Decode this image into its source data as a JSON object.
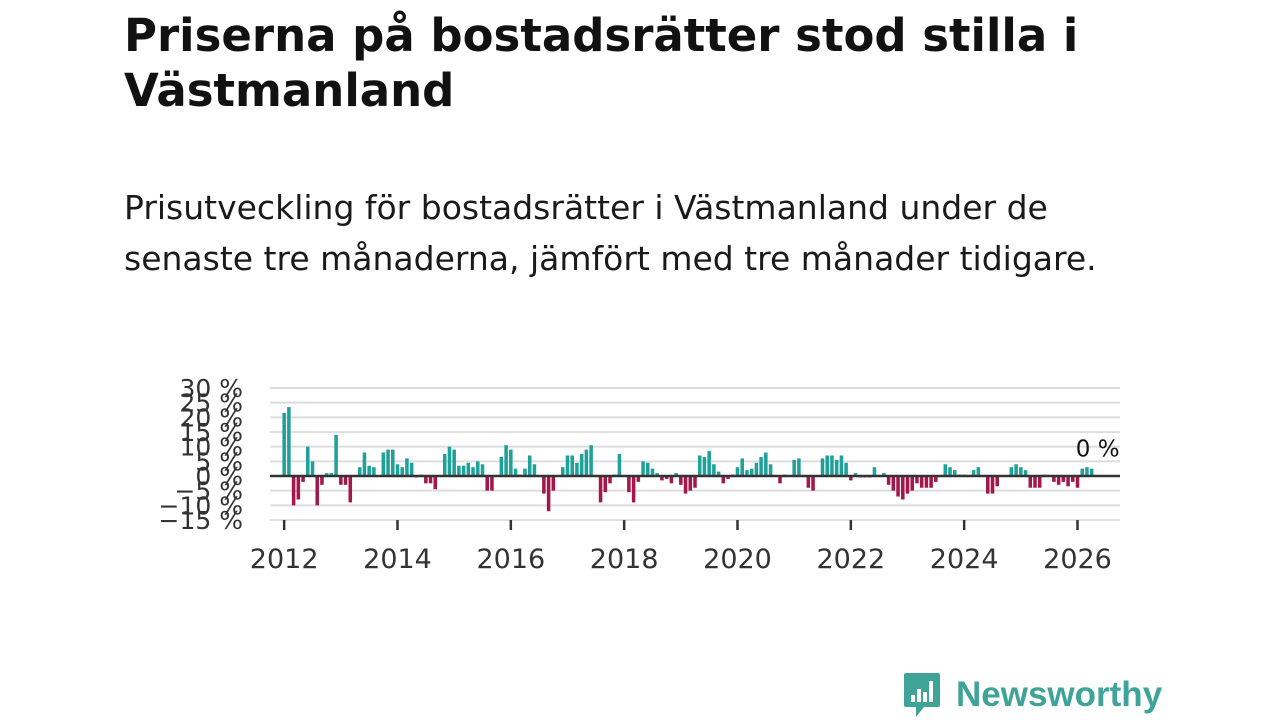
{
  "title": "Priserna på bostadsrätter stod stilla i Västmanland",
  "subtitle": "Prisutveckling för bostadsrätter i Västmanland under de senaste tre månaderna, jämfört med tre månader tidigare.",
  "brand": {
    "name": "Newsworthy",
    "color": "#3fa397"
  },
  "colors": {
    "positive": "#1fa19a",
    "negative": "#a3174b",
    "zero_line": "#333333",
    "grid": "#dddddd",
    "axis_text": "#333333"
  },
  "chart_data": {
    "type": "bar",
    "title": "Prisutveckling för bostadsrätter i Västmanland",
    "xlabel": "",
    "ylabel": "",
    "ylim": [
      -15,
      30
    ],
    "xlim": [
      2011.75,
      2026.75
    ],
    "y_ticks": [
      30,
      25,
      20,
      15,
      10,
      5,
      0,
      -5,
      -10,
      -15
    ],
    "y_tick_labels": [
      "30 %",
      "25 %",
      "20 %",
      "15 %",
      "10 %",
      "5 %",
      "0 %",
      "−5 %",
      "−10 %",
      "−15 %"
    ],
    "x_ticks": [
      2012,
      2014,
      2016,
      2018,
      2020,
      2022,
      2024,
      2026
    ],
    "x_tick_labels": [
      "2012",
      "2014",
      "2016",
      "2018",
      "2020",
      "2022",
      "2024",
      "2026"
    ],
    "annotation": "0 %",
    "start_year": 2012,
    "start_month": 1,
    "values": [
      21.5,
      23.5,
      -10,
      -8,
      -2,
      10,
      5,
      -10,
      -3,
      1,
      1,
      14,
      -3,
      -3,
      -9,
      0,
      3,
      8,
      3.5,
      3,
      0,
      8,
      9,
      9,
      4,
      3,
      6,
      4.5,
      -0.5,
      0.5,
      -2.5,
      -2.5,
      -4.5,
      0,
      7.5,
      10,
      9,
      3.5,
      3.5,
      4.5,
      3,
      5,
      4,
      -5,
      -5,
      0,
      6.5,
      10.5,
      9,
      2.5,
      0.5,
      2.5,
      7,
      4,
      0,
      -6,
      -12,
      -5,
      0,
      3,
      7,
      7,
      4.5,
      7.5,
      9,
      10.5,
      0,
      -9,
      -5.5,
      -2.5,
      0.5,
      7.5,
      0,
      -5.5,
      -9,
      -2,
      5,
      4.5,
      2.5,
      1,
      -1.5,
      -1,
      -2.5,
      1,
      -3,
      -6,
      -5,
      -4,
      7,
      6.5,
      8.5,
      4,
      1.5,
      -2.5,
      -1,
      0.5,
      3,
      6,
      2,
      2.5,
      4.5,
      6.5,
      8,
      4,
      0,
      -2.5,
      0.5,
      0,
      5.5,
      6,
      0,
      -4,
      -5,
      0,
      6,
      7,
      7,
      5.5,
      7,
      4.5,
      -1.5,
      1,
      -0.5,
      -0.5,
      -0.5,
      3,
      0,
      1,
      -3,
      -5,
      -7,
      -8,
      -6,
      -5,
      -2.5,
      -4,
      -4,
      -4,
      -2,
      0,
      4,
      3,
      2,
      0.5,
      0.5,
      0,
      2,
      3,
      0,
      -6,
      -6,
      -3.5,
      0,
      0,
      3,
      4,
      3,
      2,
      -4,
      -4,
      -4,
      0.5,
      0,
      -2,
      -3,
      -2,
      -3.5,
      -2,
      -4,
      2.5,
      3,
      2.5
    ]
  }
}
